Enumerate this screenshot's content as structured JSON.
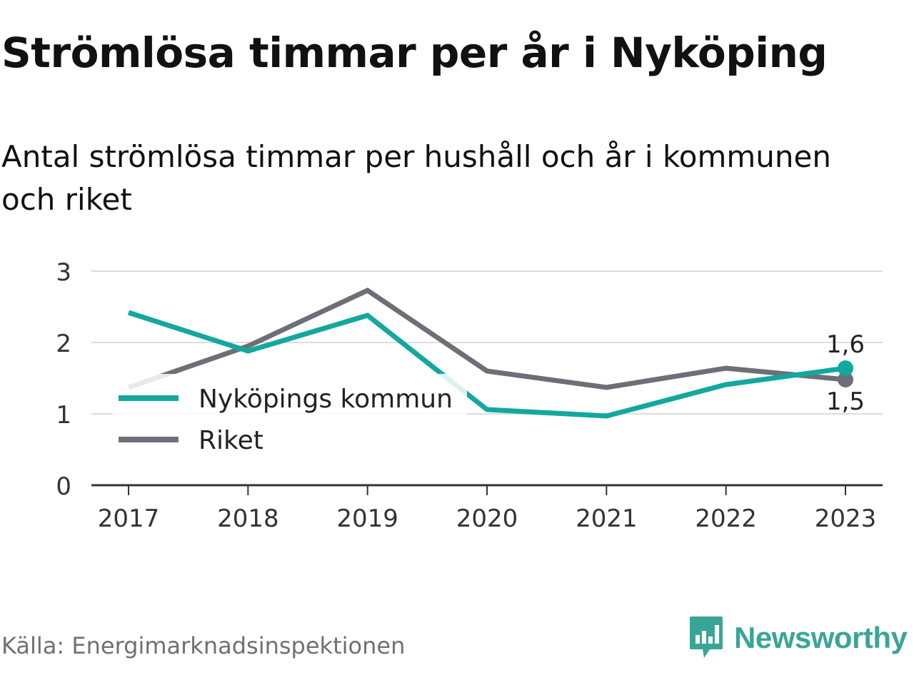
{
  "title": "Strömlösa timmar per år i Nyköping",
  "subtitle": "Antal strömlösa timmar per hushåll och år i kommunen och riket",
  "source": "Källa: Energimarknadsinspektionen",
  "brand": {
    "name": "Newsworthy",
    "icon": "newsworthy-logo-icon",
    "color": "#3aa596"
  },
  "chart_data": {
    "type": "line",
    "x": [
      "2017",
      "2018",
      "2019",
      "2020",
      "2021",
      "2022",
      "2023"
    ],
    "ylim": [
      0,
      3
    ],
    "yticks": [
      "0",
      "1",
      "2",
      "3"
    ],
    "grid": true,
    "legend_placement": "inside-left",
    "series": [
      {
        "name": "Nyköpings kommun",
        "color": "#13a89e",
        "values": [
          2.42,
          1.88,
          2.38,
          1.06,
          0.97,
          1.41,
          1.64
        ],
        "end_label": "1,6"
      },
      {
        "name": "Riket",
        "color": "#6e6e76",
        "values": [
          1.37,
          1.95,
          2.73,
          1.6,
          1.37,
          1.64,
          1.48
        ],
        "end_label": "1,5"
      }
    ]
  }
}
